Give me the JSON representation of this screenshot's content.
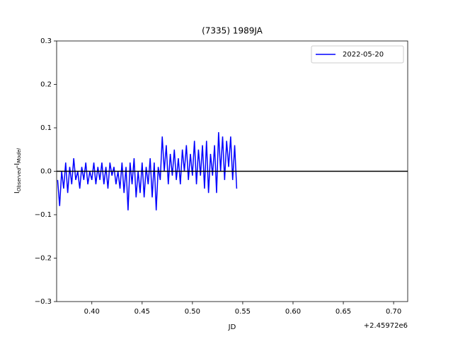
{
  "chart_data": {
    "type": "line",
    "title": "(7335) 1989JA",
    "xlabel": "JD",
    "ylabel_parts": [
      "I",
      "Observed",
      "-I",
      "Model"
    ],
    "x_offset_label": "+2.45972e6",
    "x": [
      0.366,
      0.368,
      0.37,
      0.372,
      0.374,
      0.376,
      0.378,
      0.38,
      0.382,
      0.384,
      0.386,
      0.388,
      0.39,
      0.392,
      0.394,
      0.396,
      0.398,
      0.4,
      0.402,
      0.404,
      0.406,
      0.408,
      0.41,
      0.412,
      0.414,
      0.416,
      0.418,
      0.42,
      0.422,
      0.424,
      0.426,
      0.428,
      0.43,
      0.432,
      0.434,
      0.436,
      0.438,
      0.44,
      0.442,
      0.444,
      0.446,
      0.448,
      0.45,
      0.452,
      0.454,
      0.456,
      0.458,
      0.46,
      0.462,
      0.464,
      0.466,
      0.468,
      0.47,
      0.472,
      0.474,
      0.476,
      0.478,
      0.48,
      0.482,
      0.484,
      0.486,
      0.488,
      0.49,
      0.492,
      0.494,
      0.496,
      0.498,
      0.5,
      0.502,
      0.504,
      0.506,
      0.508,
      0.51,
      0.512,
      0.514,
      0.516,
      0.518,
      0.52,
      0.522,
      0.524,
      0.526,
      0.528,
      0.53,
      0.532,
      0.534,
      0.536,
      0.538,
      0.54,
      0.542,
      0.544
    ],
    "series": [
      {
        "name": "2022-05-20",
        "color": "#0000ff",
        "values": [
          -0.02,
          -0.08,
          0.0,
          -0.04,
          0.02,
          -0.05,
          0.01,
          -0.03,
          0.03,
          -0.02,
          0.0,
          -0.04,
          0.01,
          -0.02,
          0.02,
          -0.03,
          0.0,
          -0.02,
          0.02,
          -0.03,
          0.01,
          -0.02,
          0.02,
          -0.03,
          0.01,
          -0.04,
          0.02,
          -0.01,
          0.01,
          -0.03,
          0.0,
          -0.04,
          0.02,
          -0.05,
          0.01,
          -0.09,
          0.02,
          -0.03,
          0.03,
          -0.06,
          0.0,
          -0.05,
          0.02,
          -0.06,
          0.01,
          -0.03,
          0.03,
          -0.06,
          0.02,
          -0.09,
          0.01,
          -0.02,
          0.08,
          0.0,
          0.06,
          -0.03,
          0.04,
          -0.01,
          0.05,
          -0.02,
          0.03,
          -0.03,
          0.05,
          0.0,
          0.06,
          -0.02,
          0.04,
          -0.01,
          0.07,
          -0.03,
          0.05,
          -0.01,
          0.06,
          -0.04,
          0.07,
          -0.05,
          0.04,
          -0.01,
          0.06,
          -0.05,
          0.09,
          0.0,
          0.08,
          -0.02,
          0.07,
          0.01,
          0.08,
          -0.02,
          0.06,
          -0.04
        ]
      }
    ],
    "hline": 0,
    "hline_color": "#000000",
    "xlim": [
      0.365,
      0.714
    ],
    "ylim": [
      -0.3,
      0.3
    ],
    "xticks": [
      {
        "value": 0.4,
        "label": "0.40"
      },
      {
        "value": 0.45,
        "label": "0.45"
      },
      {
        "value": 0.5,
        "label": "0.50"
      },
      {
        "value": 0.55,
        "label": "0.55"
      },
      {
        "value": 0.6,
        "label": "0.60"
      },
      {
        "value": 0.65,
        "label": "0.65"
      },
      {
        "value": 0.7,
        "label": "0.70"
      }
    ],
    "yticks": [
      {
        "value": -0.3,
        "label": "−0.3"
      },
      {
        "value": -0.2,
        "label": "−0.2"
      },
      {
        "value": -0.1,
        "label": "−0.1"
      },
      {
        "value": 0,
        "label": "0.0"
      },
      0.1,
      0.2,
      0.3
    ],
    "legend": "upper right"
  }
}
